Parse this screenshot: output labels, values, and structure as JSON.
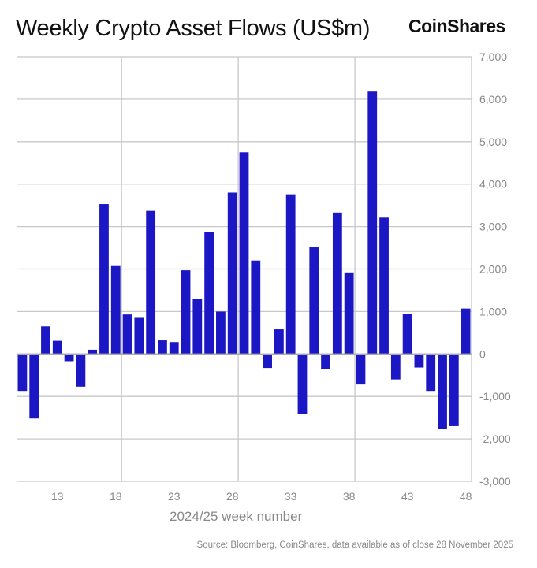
{
  "title": "Weekly Crypto Asset Flows (US$m)",
  "logo": "CoinShares",
  "source": "Source: Bloomberg, CoinShares, data available as of close 28 November 2025",
  "chart_data": {
    "type": "bar",
    "title": "Weekly Crypto Asset Flows (US$m)",
    "xlabel": "2024/25 week number",
    "ylabel": "",
    "ylim": [
      -3000,
      7000
    ],
    "yticks": [
      7000,
      6000,
      5000,
      4000,
      3000,
      2000,
      1000,
      0,
      -1000,
      -2000,
      -3000
    ],
    "ytick_labels": [
      "7,000",
      "6,000",
      "5,000",
      "4,000",
      "3,000",
      "2,000",
      "1,000",
      "0",
      "-1,000",
      "-2,000",
      "-3,000"
    ],
    "xtick_labels": [
      "13",
      "18",
      "23",
      "28",
      "33",
      "38",
      "43",
      "48"
    ],
    "grid": true,
    "bar_color": "#1c17c4",
    "categories": [
      10,
      11,
      12,
      13,
      14,
      15,
      16,
      17,
      18,
      19,
      20,
      21,
      22,
      23,
      24,
      25,
      26,
      27,
      28,
      29,
      30,
      31,
      32,
      33,
      34,
      35,
      36,
      37,
      38,
      39,
      40,
      41,
      42,
      43,
      44,
      45,
      46,
      47,
      48
    ],
    "values": [
      -870,
      -1520,
      650,
      310,
      -170,
      -770,
      100,
      3530,
      2070,
      930,
      850,
      3370,
      320,
      280,
      1970,
      1300,
      2880,
      1000,
      3800,
      4750,
      2200,
      -330,
      580,
      3760,
      -1420,
      2510,
      -350,
      3330,
      1920,
      -720,
      6180,
      3210,
      -600,
      940,
      -320,
      -870,
      -1770,
      -1700,
      1070
    ]
  }
}
